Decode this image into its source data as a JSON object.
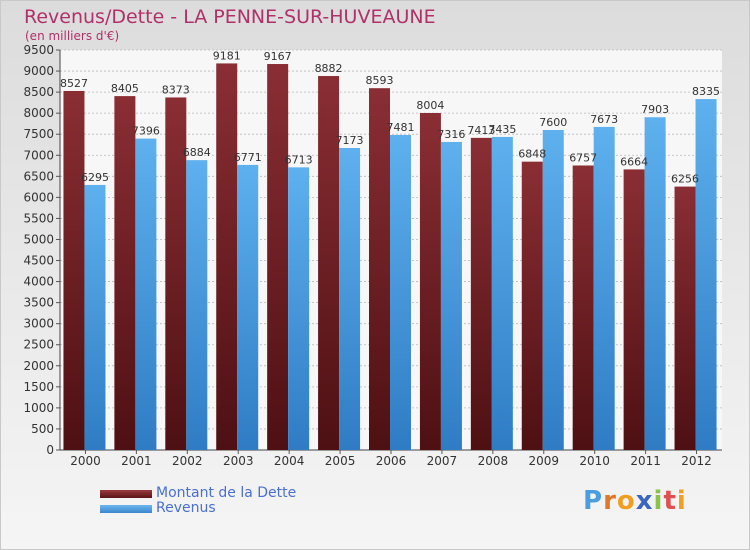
{
  "header": {
    "title": "Revenus/Dette - LA PENNE-SUR-HUVEAUNE",
    "subtitle": "(en milliers d'€)"
  },
  "colors": {
    "title": "#b0306a",
    "dette": "#7a2329",
    "revenus": "#4a9ee0",
    "legend_text": "#4a6fd0"
  },
  "legend": {
    "items": [
      {
        "label": "Montant de la Dette"
      },
      {
        "label": "Revenus"
      }
    ]
  },
  "logo": {
    "text": "Proxiti"
  },
  "chart_data": {
    "type": "bar",
    "title": "Revenus/Dette - LA PENNE-SUR-HUVEAUNE",
    "ylabel": "(en milliers d'€)",
    "ylim": [
      0,
      9500
    ],
    "ytick_step": 500,
    "grid": true,
    "legend_position": "bottom-left",
    "categories": [
      "2000",
      "2001",
      "2002",
      "2003",
      "2004",
      "2005",
      "2006",
      "2007",
      "2008",
      "2009",
      "2010",
      "2011",
      "2012"
    ],
    "series": [
      {
        "name": "Montant de la Dette",
        "values": [
          8527,
          8405,
          8373,
          9181,
          9167,
          8882,
          8593,
          8004,
          7413,
          6848,
          6757,
          6664,
          6256
        ]
      },
      {
        "name": "Revenus",
        "values": [
          6295,
          7396,
          6884,
          6771,
          6713,
          7173,
          7481,
          7316,
          7435,
          7600,
          7673,
          7903,
          8335
        ]
      }
    ]
  }
}
